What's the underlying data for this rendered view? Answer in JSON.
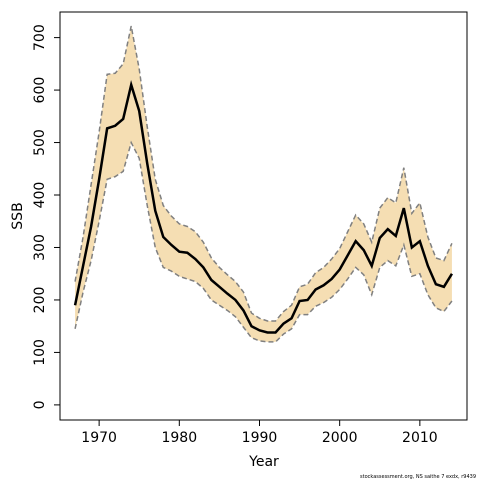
{
  "chart_data": {
    "type": "line_band",
    "x_label": "Year",
    "y_label": "SSB",
    "footer": "stockassessment.org, NS saithe 7 exdx, r9439",
    "x": [
      1967,
      1968,
      1969,
      1970,
      1971,
      1972,
      1973,
      1974,
      1975,
      1976,
      1977,
      1978,
      1979,
      1980,
      1981,
      1982,
      1983,
      1984,
      1985,
      1986,
      1987,
      1988,
      1989,
      1990,
      1991,
      1992,
      1993,
      1994,
      1995,
      1996,
      1997,
      1998,
      1999,
      2000,
      2001,
      2002,
      2003,
      2004,
      2005,
      2006,
      2007,
      2008,
      2009,
      2010,
      2011,
      2012,
      2013,
      2014
    ],
    "values": [
      190,
      265,
      340,
      430,
      527,
      532,
      545,
      610,
      560,
      460,
      370,
      320,
      305,
      292,
      290,
      278,
      262,
      238,
      225,
      212,
      200,
      180,
      150,
      142,
      138,
      138,
      155,
      165,
      198,
      200,
      220,
      228,
      240,
      258,
      285,
      312,
      295,
      265,
      318,
      335,
      322,
      375,
      300,
      312,
      265,
      230,
      225,
      250
    ],
    "upper": [
      235,
      320,
      420,
      520,
      630,
      632,
      650,
      722,
      640,
      530,
      430,
      380,
      360,
      345,
      340,
      330,
      310,
      280,
      262,
      248,
      235,
      215,
      175,
      165,
      160,
      160,
      178,
      190,
      225,
      230,
      252,
      262,
      278,
      298,
      330,
      362,
      345,
      310,
      375,
      395,
      385,
      452,
      365,
      385,
      320,
      280,
      275,
      308
    ],
    "lower": [
      145,
      215,
      275,
      350,
      430,
      435,
      445,
      500,
      470,
      380,
      300,
      262,
      255,
      245,
      240,
      235,
      222,
      200,
      190,
      180,
      168,
      148,
      128,
      122,
      120,
      120,
      135,
      145,
      172,
      172,
      188,
      195,
      205,
      220,
      240,
      262,
      248,
      210,
      262,
      275,
      265,
      305,
      245,
      250,
      210,
      185,
      178,
      198
    ],
    "color": "#000000",
    "band_color": "#f5deb3",
    "band_line_color": "#808080",
    "xlim": [
      1965.12,
      2015.88
    ],
    "xticks": [
      1970,
      1980,
      1990,
      2000,
      2010
    ],
    "ylim": [
      -28.8,
      748.8
    ],
    "yticks": [
      0,
      100,
      200,
      300,
      400,
      500,
      600,
      700
    ]
  }
}
